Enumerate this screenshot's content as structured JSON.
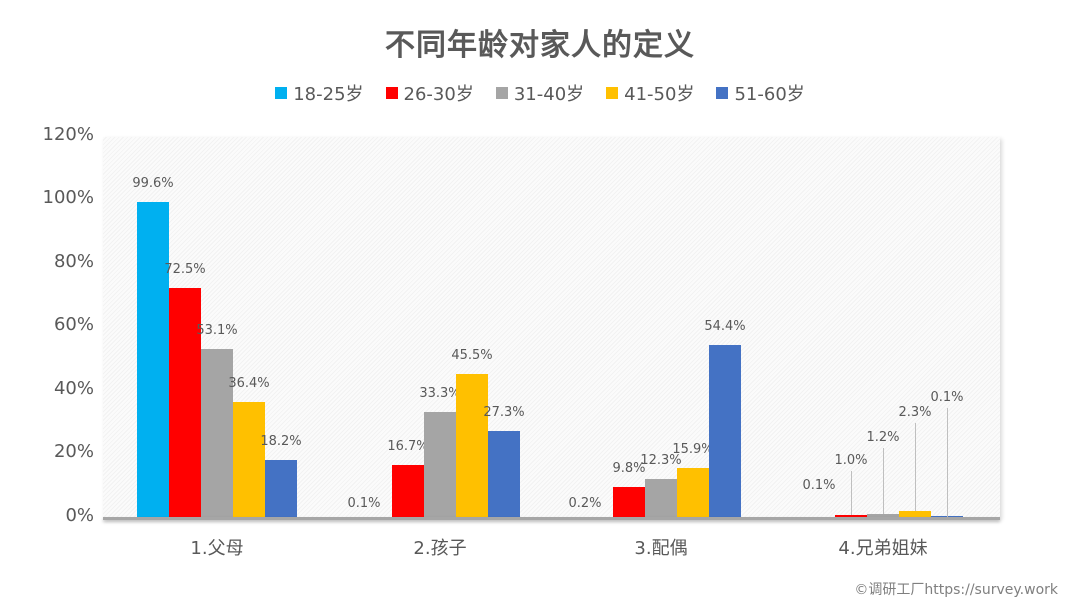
{
  "title": "不同年龄对家人的定义",
  "legend": [
    {
      "label": "18-25岁",
      "color": "#00B0F0"
    },
    {
      "label": "26-30岁",
      "color": "#FF0000"
    },
    {
      "label": "31-40岁",
      "color": "#A5A5A5"
    },
    {
      "label": "41-50岁",
      "color": "#FFC000"
    },
    {
      "label": "51-60岁",
      "color": "#4472C4"
    }
  ],
  "y_axis": {
    "ticks": [
      "120%",
      "100%",
      "80%",
      "60%",
      "40%",
      "20%",
      "0%"
    ]
  },
  "categories": [
    "1.父母",
    "2.孩子",
    "3.配偶",
    "4.兄弟姐妹"
  ],
  "credit": "©调研工厂https://survey.work",
  "chart_data": {
    "type": "bar",
    "title": "不同年龄对家人的定义",
    "xlabel": "",
    "ylabel": "",
    "ylim": [
      0,
      120
    ],
    "y_ticks": [
      "0%",
      "20%",
      "40%",
      "60%",
      "80%",
      "100%",
      "120%"
    ],
    "grid": false,
    "legend_position": "top",
    "categories": [
      "1.父母",
      "2.孩子",
      "3.配偶",
      "4.兄弟姐妹"
    ],
    "series": [
      {
        "name": "18-25岁",
        "color": "#00B0F0",
        "values": [
          99.6,
          0,
          0,
          0
        ],
        "labels": [
          "99.6%",
          "",
          "",
          ""
        ]
      },
      {
        "name": "26-30岁",
        "color": "#FF0000",
        "values": [
          72.5,
          16.7,
          9.8,
          1.0
        ],
        "labels": [
          "72.5%",
          "16.7%",
          "9.8%",
          "1.0%"
        ]
      },
      {
        "name": "31-40岁",
        "color": "#A5A5A5",
        "values": [
          53.1,
          33.3,
          12.3,
          1.2
        ],
        "labels": [
          "53.1%",
          "33.3%",
          "12.3%",
          "1.2%"
        ]
      },
      {
        "name": "41-50岁",
        "color": "#FFC000",
        "values": [
          36.4,
          45.5,
          15.9,
          2.3
        ],
        "labels": [
          "36.4%",
          "45.5%",
          "15.9%",
          "2.3%"
        ]
      },
      {
        "name": "51-60岁",
        "color": "#4472C4",
        "values": [
          18.2,
          27.3,
          54.4,
          0.1
        ],
        "labels": [
          "18.2%",
          "27.3%",
          "54.4%",
          "0.1%"
        ]
      }
    ],
    "extra_labels": [
      {
        "category": "2.孩子",
        "text": "0.1%"
      },
      {
        "category": "3.配偶",
        "text": "0.2%"
      },
      {
        "category": "4.兄弟姐妹",
        "text": "0.1%"
      }
    ]
  }
}
